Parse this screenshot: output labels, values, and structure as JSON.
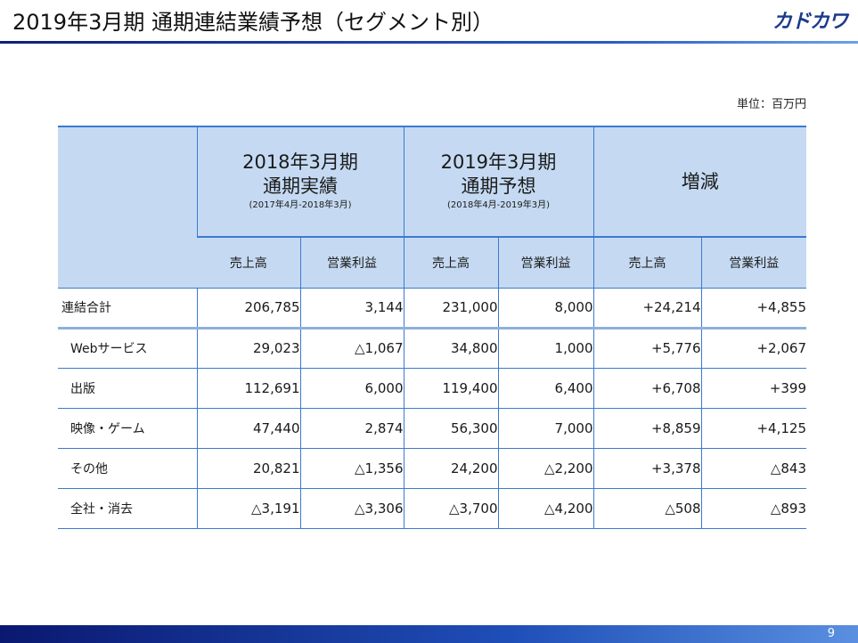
{
  "header": {
    "title": "2019年3月期 通期連結業績予想（セグメント別）",
    "logo_text": "カドカワ"
  },
  "unit": "単位：百万円",
  "table": {
    "groups": [
      {
        "main_line1": "2018年3月期",
        "main_line2": "通期実績",
        "note": "(2017年4月-2018年3月)"
      },
      {
        "main_line1": "2019年3月期",
        "main_line2": "通期予想",
        "note": "(2018年4月-2019年3月)"
      },
      {
        "main_line1": "増減",
        "main_line2": "",
        "note": ""
      }
    ],
    "sub_headers": [
      "売上高",
      "営業利益",
      "売上高",
      "営業利益",
      "売上高",
      "営業利益"
    ],
    "rows": [
      {
        "label": "連結合計",
        "values": [
          "206,785",
          "3,144",
          "231,000",
          "8,000",
          "+24,214",
          "+4,855"
        ]
      },
      {
        "label": "Webサービス",
        "values": [
          "29,023",
          "△1,067",
          "34,800",
          "1,000",
          "+5,776",
          "+2,067"
        ]
      },
      {
        "label": "出版",
        "values": [
          "112,691",
          "6,000",
          "119,400",
          "6,400",
          "+6,708",
          "+399"
        ]
      },
      {
        "label": "映像・ゲーム",
        "values": [
          "47,440",
          "2,874",
          "56,300",
          "7,000",
          "+8,859",
          "+4,125"
        ]
      },
      {
        "label": "その他",
        "values": [
          "20,821",
          "△1,356",
          "24,200",
          "△2,200",
          "+3,378",
          "△843"
        ]
      },
      {
        "label": "全社・消去",
        "values": [
          "△3,191",
          "△3,306",
          "△3,700",
          "△4,200",
          "△508",
          "△893"
        ]
      }
    ]
  },
  "footer": {
    "page_number": "9"
  },
  "colors": {
    "header_fill": "#c5daf2",
    "rule_blue": "#3a7ad0",
    "title_bar": "#0e1f7a"
  }
}
